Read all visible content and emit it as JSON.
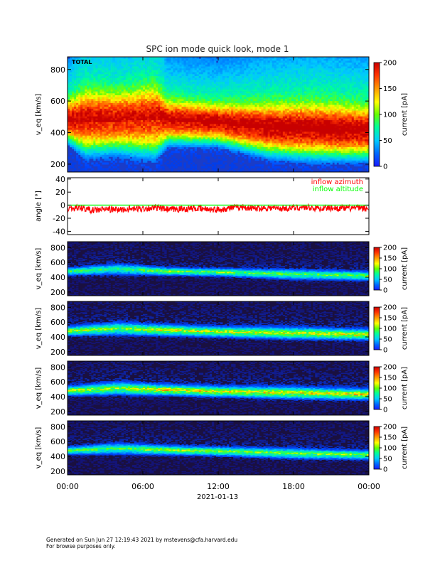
{
  "chart_data": [
    {
      "type": "heatmap",
      "title": "SPC ion mode quick look, mode 1",
      "panel_label": "TOTAL",
      "ylabel": "v_eq [km/s]",
      "ylim": [
        150,
        880
      ],
      "yticks": [
        200,
        400,
        600,
        800
      ],
      "colorbar": {
        "label": "current [pA]",
        "range": [
          0,
          200
        ],
        "ticks": [
          0,
          50,
          100,
          150,
          200
        ]
      },
      "shading": "log",
      "features": [
        {
          "t": 0.0,
          "core": 470,
          "width": 55,
          "peak": 180
        },
        {
          "t": 1.5,
          "core": 470,
          "width": 90,
          "peak": 160
        },
        {
          "t": 4.0,
          "core": 470,
          "width": 85,
          "peak": 150
        },
        {
          "t": 7.0,
          "core": 480,
          "width": 100,
          "peak": 150
        },
        {
          "t": 8.0,
          "core": 470,
          "width": 60,
          "peak": 170
        },
        {
          "t": 12.0,
          "core": 455,
          "width": 55,
          "peak": 180
        },
        {
          "t": 16.0,
          "core": 420,
          "width": 70,
          "peak": 190
        },
        {
          "t": 20.0,
          "core": 410,
          "width": 75,
          "peak": 195
        },
        {
          "t": 24.0,
          "core": 400,
          "width": 70,
          "peak": 190
        }
      ]
    },
    {
      "type": "line",
      "ylabel": "angle [°]",
      "ylim": [
        -45,
        42
      ],
      "yticks": [
        -40,
        -20,
        0,
        20,
        40
      ],
      "series": [
        {
          "name": "inflow azimuth",
          "color": "#ff0000",
          "t": [
            0,
            1,
            2,
            3,
            4,
            5,
            6,
            7,
            8,
            9,
            10,
            11,
            12,
            13,
            14,
            15,
            16,
            17,
            18,
            19,
            20,
            21,
            22,
            23,
            24
          ],
          "values": [
            -5,
            -4,
            -8,
            -6,
            -7,
            -6,
            -5,
            -4,
            -7,
            -6,
            -5,
            -6,
            -7,
            -4,
            -3,
            -5,
            -4,
            -5,
            -4,
            -3,
            -5,
            -4,
            -5,
            -4,
            -6
          ]
        },
        {
          "name": "inflow altitude",
          "color": "#00ff00",
          "t": [
            0,
            24
          ],
          "values": [
            0,
            0
          ]
        }
      ]
    },
    {
      "type": "heatmap",
      "ylabel": "v_eq [km/s]",
      "ylim": [
        150,
        880
      ],
      "yticks": [
        200,
        400,
        600,
        800
      ],
      "colorbar": {
        "label": "current [pA]",
        "range": [
          0,
          200
        ],
        "ticks": [
          0,
          50,
          100,
          150,
          200
        ]
      },
      "shading": "linear",
      "features": [
        {
          "t": 0.0,
          "core": 470,
          "width": 30,
          "peak": 70
        },
        {
          "t": 4.0,
          "core": 500,
          "width": 45,
          "peak": 60
        },
        {
          "t": 8.0,
          "core": 470,
          "width": 30,
          "peak": 80
        },
        {
          "t": 12.0,
          "core": 460,
          "width": 30,
          "peak": 75
        },
        {
          "t": 18.0,
          "core": 430,
          "width": 40,
          "peak": 70
        },
        {
          "t": 24.0,
          "core": 410,
          "width": 35,
          "peak": 75
        }
      ]
    },
    {
      "type": "heatmap",
      "ylabel": "v_eq [km/s]",
      "ylim": [
        150,
        880
      ],
      "yticks": [
        200,
        400,
        600,
        800
      ],
      "colorbar": {
        "label": "current [pA]",
        "range": [
          0,
          200
        ],
        "ticks": [
          0,
          50,
          100,
          150,
          200
        ]
      },
      "shading": "linear",
      "features": [
        {
          "t": 0.0,
          "core": 470,
          "width": 35,
          "peak": 85
        },
        {
          "t": 4.0,
          "core": 500,
          "width": 50,
          "peak": 75
        },
        {
          "t": 8.0,
          "core": 480,
          "width": 40,
          "peak": 95
        },
        {
          "t": 12.0,
          "core": 460,
          "width": 40,
          "peak": 90
        },
        {
          "t": 18.0,
          "core": 440,
          "width": 45,
          "peak": 90
        },
        {
          "t": 24.0,
          "core": 420,
          "width": 40,
          "peak": 95
        }
      ]
    },
    {
      "type": "heatmap",
      "ylabel": "v_eq [km/s]",
      "ylim": [
        150,
        880
      ],
      "yticks": [
        200,
        400,
        600,
        800
      ],
      "colorbar": {
        "label": "current [pA]",
        "range": [
          0,
          200
        ],
        "ticks": [
          0,
          50,
          100,
          150,
          200
        ]
      },
      "shading": "linear",
      "features": [
        {
          "t": 0.0,
          "core": 470,
          "width": 35,
          "peak": 90
        },
        {
          "t": 4.0,
          "core": 500,
          "width": 50,
          "peak": 80
        },
        {
          "t": 8.0,
          "core": 480,
          "width": 40,
          "peak": 100
        },
        {
          "t": 12.0,
          "core": 460,
          "width": 40,
          "peak": 95
        },
        {
          "t": 18.0,
          "core": 440,
          "width": 45,
          "peak": 95
        },
        {
          "t": 24.0,
          "core": 420,
          "width": 40,
          "peak": 100
        }
      ]
    },
    {
      "type": "heatmap",
      "ylabel": "v_eq [km/s]",
      "ylim": [
        150,
        880
      ],
      "yticks": [
        200,
        400,
        600,
        800
      ],
      "colorbar": {
        "label": "current [pA]",
        "range": [
          0,
          200
        ],
        "ticks": [
          0,
          50,
          100,
          150,
          200
        ]
      },
      "shading": "linear",
      "features": [
        {
          "t": 0.0,
          "core": 470,
          "width": 30,
          "peak": 75
        },
        {
          "t": 4.0,
          "core": 495,
          "width": 45,
          "peak": 65
        },
        {
          "t": 8.0,
          "core": 475,
          "width": 35,
          "peak": 85
        },
        {
          "t": 12.0,
          "core": 460,
          "width": 35,
          "peak": 80
        },
        {
          "t": 18.0,
          "core": 430,
          "width": 40,
          "peak": 75
        },
        {
          "t": 24.0,
          "core": 410,
          "width": 35,
          "peak": 80
        }
      ]
    }
  ],
  "xaxis": {
    "tick_labels": [
      "00:00",
      "06:00",
      "12:00",
      "18:00",
      "00:00"
    ],
    "tick_hours": [
      0,
      6,
      12,
      18,
      24
    ],
    "date_label": "2021-01-13",
    "range_hours": [
      0,
      24
    ]
  },
  "footer": {
    "line1": "Generated on Sun Jun 27 12:19:43 2021 by mstevens@cfa.harvard.edu",
    "line2": "For browse purposes only."
  }
}
